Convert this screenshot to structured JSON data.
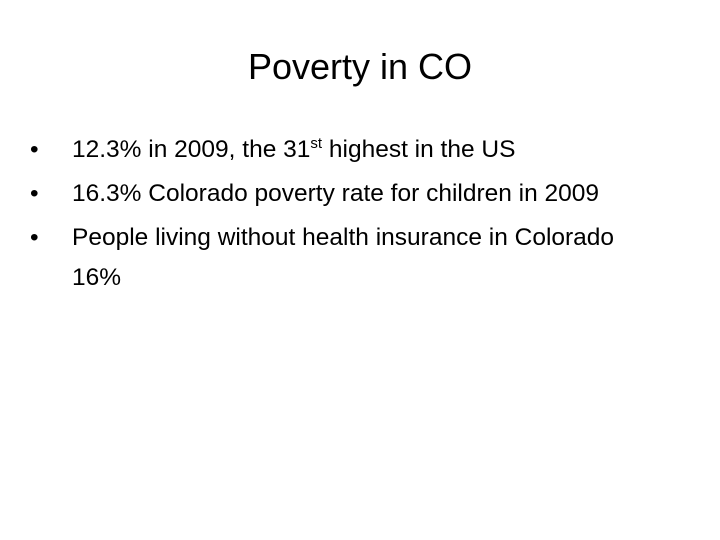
{
  "title": "Poverty in CO",
  "bullets": [
    {
      "parts": [
        "12.3% in 2009, the 31",
        "st",
        " highest in the US"
      ]
    },
    {
      "parts": [
        "16.3% Colorado poverty rate for children in 2009"
      ]
    },
    {
      "parts": [
        "People living without health insurance in Colorado 16%"
      ]
    }
  ]
}
